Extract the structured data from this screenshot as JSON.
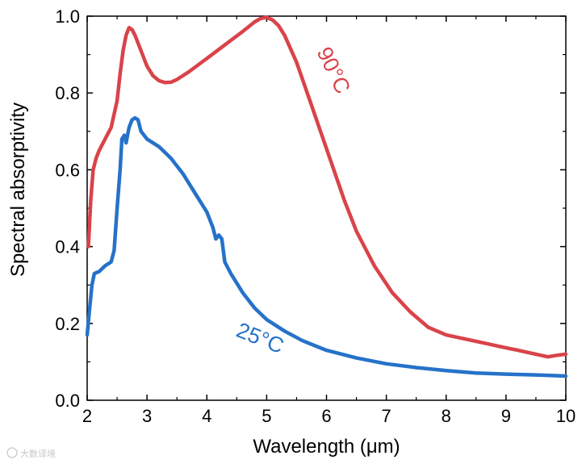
{
  "chart_data": {
    "type": "line",
    "title": "",
    "xlabel": "Wavelength (μm)",
    "ylabel": "Spectral absorptivity",
    "xlim": [
      2,
      10
    ],
    "ylim": [
      0,
      1.0
    ],
    "x_ticks": [
      "2",
      "3",
      "4",
      "5",
      "6",
      "7",
      "8",
      "9",
      "10"
    ],
    "y_ticks": [
      "0.0",
      "0.2",
      "0.4",
      "0.6",
      "0.8",
      "1.0"
    ],
    "grid": false,
    "series": [
      {
        "name": "90°C",
        "label_text": "90°C",
        "color": "#d9434a",
        "x": [
          2.02,
          2.06,
          2.1,
          2.15,
          2.2,
          2.3,
          2.4,
          2.5,
          2.55,
          2.6,
          2.65,
          2.7,
          2.75,
          2.8,
          2.9,
          3.0,
          3.1,
          3.2,
          3.3,
          3.4,
          3.5,
          3.7,
          4.0,
          4.3,
          4.6,
          4.8,
          4.9,
          5.0,
          5.1,
          5.2,
          5.3,
          5.5,
          5.7,
          5.9,
          6.1,
          6.3,
          6.5,
          6.8,
          7.1,
          7.4,
          7.7,
          8.0,
          8.3,
          8.6,
          8.9,
          9.2,
          9.5,
          9.7,
          9.85,
          10.0
        ],
        "values": [
          0.4,
          0.52,
          0.6,
          0.63,
          0.65,
          0.68,
          0.71,
          0.78,
          0.85,
          0.91,
          0.95,
          0.97,
          0.965,
          0.95,
          0.91,
          0.87,
          0.845,
          0.832,
          0.827,
          0.828,
          0.835,
          0.855,
          0.89,
          0.925,
          0.96,
          0.985,
          0.994,
          0.997,
          0.99,
          0.975,
          0.95,
          0.88,
          0.79,
          0.7,
          0.61,
          0.52,
          0.44,
          0.35,
          0.28,
          0.23,
          0.19,
          0.17,
          0.16,
          0.15,
          0.14,
          0.13,
          0.12,
          0.113,
          0.117,
          0.12
        ]
      },
      {
        "name": "25°C",
        "label_text": "25°C",
        "color": "#2672c9",
        "x": [
          2.0,
          2.03,
          2.08,
          2.12,
          2.2,
          2.3,
          2.4,
          2.45,
          2.5,
          2.55,
          2.58,
          2.62,
          2.65,
          2.7,
          2.75,
          2.8,
          2.85,
          2.9,
          3.0,
          3.2,
          3.4,
          3.6,
          3.8,
          4.0,
          4.1,
          4.15,
          4.2,
          4.25,
          4.3,
          4.4,
          4.6,
          4.8,
          5.0,
          5.3,
          5.6,
          6.0,
          6.5,
          7.0,
          7.5,
          8.0,
          8.5,
          9.0,
          9.5,
          10.0
        ],
        "values": [
          0.17,
          0.22,
          0.3,
          0.33,
          0.335,
          0.35,
          0.36,
          0.39,
          0.5,
          0.6,
          0.68,
          0.69,
          0.67,
          0.71,
          0.73,
          0.735,
          0.73,
          0.7,
          0.68,
          0.66,
          0.63,
          0.59,
          0.54,
          0.49,
          0.45,
          0.42,
          0.43,
          0.42,
          0.36,
          0.33,
          0.28,
          0.24,
          0.21,
          0.18,
          0.155,
          0.13,
          0.11,
          0.095,
          0.085,
          0.077,
          0.071,
          0.068,
          0.066,
          0.063
        ]
      }
    ],
    "watermark": "大数译境"
  }
}
